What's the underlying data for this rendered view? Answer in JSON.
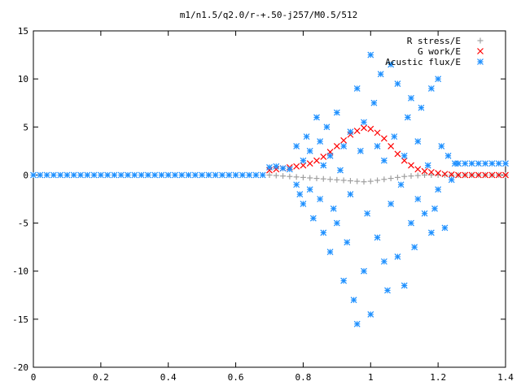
{
  "chart_data": {
    "type": "scatter",
    "title": "m1/n1.5/q2.0/r-+.50-j257/M0.5/512",
    "xlabel": "",
    "ylabel": "",
    "xlim": [
      0,
      1.4
    ],
    "ylim": [
      -20,
      15
    ],
    "x_ticks": [
      0,
      0.2,
      0.4,
      0.6,
      0.8,
      1,
      1.2,
      1.4
    ],
    "x_tick_labels": [
      "0",
      "0.2",
      "0.4",
      "0.6",
      "0.8",
      "1",
      "1.2",
      "1.4"
    ],
    "y_ticks": [
      -20,
      -15,
      -10,
      -5,
      0,
      5,
      10,
      15
    ],
    "y_tick_labels": [
      "-20",
      "-15",
      "-10",
      "-5",
      "0",
      "5",
      "10",
      "15"
    ],
    "grid": false,
    "legend_position": "top-right",
    "series": [
      {
        "name": "R stress/E",
        "marker": "plus",
        "color": "#a0a0a0",
        "points": [
          [
            0.7,
            0.0
          ],
          [
            0.72,
            -0.05
          ],
          [
            0.74,
            -0.1
          ],
          [
            0.76,
            -0.15
          ],
          [
            0.78,
            -0.2
          ],
          [
            0.8,
            -0.25
          ],
          [
            0.82,
            -0.3
          ],
          [
            0.84,
            -0.35
          ],
          [
            0.86,
            -0.4
          ],
          [
            0.88,
            -0.45
          ],
          [
            0.9,
            -0.5
          ],
          [
            0.92,
            -0.55
          ],
          [
            0.94,
            -0.6
          ],
          [
            0.96,
            -0.65
          ],
          [
            0.98,
            -0.7
          ],
          [
            1.0,
            -0.65
          ],
          [
            1.02,
            -0.55
          ],
          [
            1.04,
            -0.45
          ],
          [
            1.06,
            -0.35
          ],
          [
            1.08,
            -0.25
          ],
          [
            1.1,
            -0.15
          ],
          [
            1.12,
            -0.1
          ],
          [
            1.14,
            -0.05
          ],
          [
            1.16,
            0.0
          ],
          [
            1.18,
            0.0
          ],
          [
            1.2,
            0.0
          ],
          [
            1.22,
            0.0
          ],
          [
            1.24,
            0.0
          ],
          [
            1.26,
            0.0
          ],
          [
            1.28,
            0.0
          ],
          [
            1.3,
            0.0
          ],
          [
            1.32,
            0.0
          ],
          [
            1.34,
            0.0
          ],
          [
            1.36,
            0.0
          ],
          [
            1.38,
            0.0
          ],
          [
            1.4,
            0.0
          ]
        ]
      },
      {
        "name": "G work/E",
        "marker": "cross",
        "color": "#ff0000",
        "points": [
          [
            0.7,
            0.5
          ],
          [
            0.72,
            0.6
          ],
          [
            0.74,
            0.7
          ],
          [
            0.76,
            0.8
          ],
          [
            0.78,
            0.9
          ],
          [
            0.8,
            1.0
          ],
          [
            0.82,
            1.2
          ],
          [
            0.84,
            1.5
          ],
          [
            0.86,
            1.9
          ],
          [
            0.88,
            2.4
          ],
          [
            0.9,
            3.0
          ],
          [
            0.92,
            3.6
          ],
          [
            0.94,
            4.2
          ],
          [
            0.96,
            4.6
          ],
          [
            0.98,
            4.9
          ],
          [
            1.0,
            4.8
          ],
          [
            1.02,
            4.4
          ],
          [
            1.04,
            3.8
          ],
          [
            1.06,
            3.0
          ],
          [
            1.08,
            2.2
          ],
          [
            1.1,
            1.5
          ],
          [
            1.12,
            1.0
          ],
          [
            1.14,
            0.6
          ],
          [
            1.16,
            0.4
          ],
          [
            1.18,
            0.3
          ],
          [
            1.2,
            0.2
          ],
          [
            1.22,
            0.1
          ],
          [
            1.24,
            0.05
          ],
          [
            1.26,
            0.0
          ],
          [
            1.28,
            0.0
          ],
          [
            1.3,
            0.0
          ],
          [
            1.32,
            0.0
          ],
          [
            1.34,
            0.0
          ],
          [
            1.36,
            0.0
          ],
          [
            1.38,
            0.0
          ],
          [
            1.4,
            0.0
          ]
        ]
      },
      {
        "name": "Acustic flux/E",
        "marker": "star",
        "color": "#1e90ff",
        "points": [
          [
            0.0,
            0.0
          ],
          [
            0.02,
            0.0
          ],
          [
            0.04,
            0.0
          ],
          [
            0.06,
            0.0
          ],
          [
            0.08,
            0.0
          ],
          [
            0.1,
            0.0
          ],
          [
            0.12,
            0.0
          ],
          [
            0.14,
            0.0
          ],
          [
            0.16,
            0.0
          ],
          [
            0.18,
            0.0
          ],
          [
            0.2,
            0.0
          ],
          [
            0.22,
            0.0
          ],
          [
            0.24,
            0.0
          ],
          [
            0.26,
            0.0
          ],
          [
            0.28,
            0.0
          ],
          [
            0.3,
            0.0
          ],
          [
            0.32,
            0.0
          ],
          [
            0.34,
            0.0
          ],
          [
            0.36,
            0.0
          ],
          [
            0.38,
            0.0
          ],
          [
            0.4,
            0.0
          ],
          [
            0.42,
            0.0
          ],
          [
            0.44,
            0.0
          ],
          [
            0.46,
            0.0
          ],
          [
            0.48,
            0.0
          ],
          [
            0.5,
            0.0
          ],
          [
            0.52,
            0.0
          ],
          [
            0.54,
            0.0
          ],
          [
            0.56,
            0.0
          ],
          [
            0.58,
            0.0
          ],
          [
            0.6,
            0.0
          ],
          [
            0.62,
            0.0
          ],
          [
            0.64,
            0.0
          ],
          [
            0.66,
            0.0
          ],
          [
            0.68,
            0.0
          ],
          [
            0.7,
            0.8
          ],
          [
            0.72,
            0.9
          ],
          [
            0.74,
            0.7
          ],
          [
            0.76,
            0.6
          ],
          [
            0.78,
            -1.0
          ],
          [
            0.78,
            3.0
          ],
          [
            0.79,
            -2.0
          ],
          [
            0.8,
            1.5
          ],
          [
            0.8,
            -3.0
          ],
          [
            0.81,
            4.0
          ],
          [
            0.82,
            -1.5
          ],
          [
            0.82,
            2.5
          ],
          [
            0.83,
            -4.5
          ],
          [
            0.84,
            6.0
          ],
          [
            0.85,
            -2.5
          ],
          [
            0.85,
            3.5
          ],
          [
            0.86,
            -6.0
          ],
          [
            0.86,
            1.0
          ],
          [
            0.87,
            5.0
          ],
          [
            0.88,
            -8.0
          ],
          [
            0.88,
            2.0
          ],
          [
            0.89,
            -3.5
          ],
          [
            0.9,
            6.5
          ],
          [
            0.9,
            -5.0
          ],
          [
            0.91,
            0.5
          ],
          [
            0.92,
            -11.0
          ],
          [
            0.92,
            3.0
          ],
          [
            0.93,
            -7.0
          ],
          [
            0.94,
            4.5
          ],
          [
            0.94,
            -2.0
          ],
          [
            0.95,
            -13.0
          ],
          [
            0.96,
            9.0
          ],
          [
            0.96,
            -15.5
          ],
          [
            0.97,
            2.5
          ],
          [
            0.98,
            -10.0
          ],
          [
            0.98,
            5.5
          ],
          [
            0.99,
            -4.0
          ],
          [
            1.0,
            12.5
          ],
          [
            1.0,
            -14.5
          ],
          [
            1.01,
            7.5
          ],
          [
            1.02,
            -6.5
          ],
          [
            1.02,
            3.0
          ],
          [
            1.03,
            10.5
          ],
          [
            1.04,
            -9.0
          ],
          [
            1.04,
            1.5
          ],
          [
            1.05,
            -12.0
          ],
          [
            1.06,
            11.5
          ],
          [
            1.06,
            -3.0
          ],
          [
            1.07,
            4.0
          ],
          [
            1.08,
            -8.5
          ],
          [
            1.08,
            9.5
          ],
          [
            1.09,
            -1.0
          ],
          [
            1.1,
            -11.5
          ],
          [
            1.1,
            2.0
          ],
          [
            1.11,
            6.0
          ],
          [
            1.12,
            -5.0
          ],
          [
            1.12,
            8.0
          ],
          [
            1.13,
            -7.5
          ],
          [
            1.14,
            3.5
          ],
          [
            1.14,
            -2.5
          ],
          [
            1.15,
            7.0
          ],
          [
            1.16,
            -4.0
          ],
          [
            1.17,
            1.0
          ],
          [
            1.18,
            -6.0
          ],
          [
            1.18,
            9.0
          ],
          [
            1.19,
            -3.5
          ],
          [
            1.2,
            10.0
          ],
          [
            1.2,
            -1.5
          ],
          [
            1.21,
            3.0
          ],
          [
            1.22,
            -5.5
          ],
          [
            1.23,
            2.0
          ],
          [
            1.24,
            -0.5
          ],
          [
            1.25,
            1.2
          ],
          [
            1.26,
            1.2
          ],
          [
            1.28,
            1.2
          ],
          [
            1.3,
            1.2
          ],
          [
            1.32,
            1.2
          ],
          [
            1.34,
            1.2
          ],
          [
            1.36,
            1.2
          ],
          [
            1.38,
            1.2
          ],
          [
            1.4,
            1.2
          ]
        ]
      }
    ]
  }
}
